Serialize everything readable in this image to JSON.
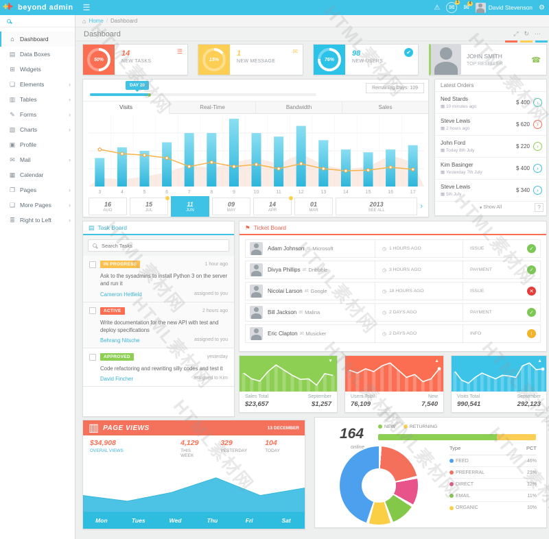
{
  "watermark": "HTML素材网",
  "topbar": {
    "brand": "beyond admin",
    "menu_icon": "☰",
    "alert_icon": "⚠",
    "mail_icon": "✉",
    "notif_icon": "✉",
    "badge1": "1",
    "badge2": "4",
    "user": "David Stevenson",
    "gear_icon": "⚙"
  },
  "breadcrumb": {
    "home_icon": "⌂",
    "home": "Home",
    "sep": "/",
    "current": "Dashboard"
  },
  "page": {
    "title": "Dashboard",
    "expand_icon": "⤢",
    "refresh_icon": "↻",
    "more_icon": "⋯"
  },
  "sidebar": {
    "items": [
      {
        "icon": "⌂",
        "label": "Dashboard",
        "chevron": ""
      },
      {
        "icon": "▤",
        "label": "Data Boxes",
        "chevron": ""
      },
      {
        "icon": "⊞",
        "label": "Widgets",
        "chevron": ""
      },
      {
        "icon": "❏",
        "label": "Elements",
        "chevron": "›"
      },
      {
        "icon": "▥",
        "label": "Tables",
        "chevron": "›"
      },
      {
        "icon": "✎",
        "label": "Forms",
        "chevron": "›"
      },
      {
        "icon": "▧",
        "label": "Charts",
        "chevron": "›"
      },
      {
        "icon": "▣",
        "label": "Profile",
        "chevron": ""
      },
      {
        "icon": "✉",
        "label": "Mail",
        "chevron": "›"
      },
      {
        "icon": "▦",
        "label": "Calendar",
        "chevron": ""
      },
      {
        "icon": "❐",
        "label": "Pages",
        "chevron": "›"
      },
      {
        "icon": "❑",
        "label": "More Pages",
        "chevron": "›"
      },
      {
        "icon": "≣",
        "label": "Right to Left",
        "chevron": "›"
      }
    ]
  },
  "stat_cards": [
    {
      "percent": "50%",
      "value": "14",
      "label": "NEW TASKS",
      "color": "#fb6e52",
      "icon": "☰"
    },
    {
      "percent": "15%",
      "value": "1",
      "label": "NEW MESSAGE",
      "color": "#fcce54",
      "icon": "✉"
    },
    {
      "percent": "76%",
      "value": "98",
      "label": "NEW USERS",
      "color": "#2dc3e8",
      "icon": "✔"
    }
  ],
  "reseller": {
    "name": "JOHN SMITH",
    "role": "TOP RESELLER",
    "phone_icon": "☎"
  },
  "visits_panel": {
    "day_badge": "DAY 20",
    "remaining": "Remaining Days: 109",
    "tabs": [
      {
        "label": "Visits"
      },
      {
        "label": "Real-Time"
      },
      {
        "label": "Bandwidth"
      },
      {
        "label": "Sales"
      }
    ],
    "dates": [
      {
        "day": "16",
        "month": "AUG"
      },
      {
        "day": "15",
        "month": "JUL"
      },
      {
        "day": "11",
        "month": "JUN"
      },
      {
        "day": "09",
        "month": "MAY"
      },
      {
        "day": "14",
        "month": "APR"
      },
      {
        "day": "01",
        "month": "MAR"
      }
    ],
    "year": "2013",
    "see_all": "SEE ALL",
    "next_icon": "›"
  },
  "orders": {
    "title": "Latest Orders",
    "cal_icon": "▦",
    "caret": "▾",
    "show_all": "Show All",
    "help": "?",
    "chev": "›",
    "rows": [
      {
        "name": "Ned Stards",
        "date": "10 minutes ago",
        "amount": "$ 400",
        "color": "#45cab8"
      },
      {
        "name": "Steve Lewis",
        "date": "2 hours ago",
        "amount": "$ 620",
        "color": "#fb6e52"
      },
      {
        "name": "John Ford",
        "date": "Today 8th July",
        "amount": "$ 220",
        "color": "#8ccf52"
      },
      {
        "name": "Kim Basinger",
        "date": "Yesterday 7th July",
        "amount": "$ 400",
        "color": "#3bc0e3"
      },
      {
        "name": "Steve Lewis",
        "date": "5th July",
        "amount": "$ 340",
        "color": "#3bc0e3"
      }
    ]
  },
  "task_board": {
    "title": "Task Board",
    "icon": "▤",
    "search_placeholder": "Search Tasks",
    "tasks": [
      {
        "badge": "IN PROGRESS",
        "badge_color": "#fcc04d",
        "time": "1 hour ago",
        "text": "Ask to the sysadmins to install Python 3 on the server and run it",
        "assignee": "Cameron Hetfield",
        "assigned": "assigned to you"
      },
      {
        "badge": "ACTIVE",
        "badge_color": "#fb6e52",
        "time": "2 hours ago",
        "text": "Write documentation for the new API with test and deploy specifications",
        "assignee": "Behrang Nitsche",
        "assigned": "assigned to you"
      },
      {
        "badge": "APPROVED",
        "badge_color": "#8ccf52",
        "time": "yesterday",
        "text": "Code refactoring and rewriting silly codes and test it",
        "assignee": "David Fincher",
        "assigned": "assigned to Kim"
      }
    ]
  },
  "ticket_board": {
    "title": "Ticket Board",
    "icon": "⚑",
    "clock_icon": "◷",
    "rows": [
      {
        "name": "Adam Johnson",
        "at": "at",
        "company": "Microsoft",
        "time": "1 HOURS AGO",
        "type": "ISSUE",
        "status_icon": "✓",
        "status_color": "#7dc855"
      },
      {
        "name": "Divya Phillips",
        "at": "at",
        "company": "Dribbble",
        "time": "3 HOURS AGO",
        "type": "PAYMENT",
        "status_icon": "✓",
        "status_color": "#7dc855"
      },
      {
        "name": "Nicolai Larson",
        "at": "at",
        "company": "Google",
        "time": "18 HOURS AGO",
        "type": "ISSUE",
        "status_icon": "✕",
        "status_color": "#e53b3b"
      },
      {
        "name": "Bill Jackson",
        "at": "at",
        "company": "Malina",
        "time": "2 DAYS AGO",
        "type": "PAYMENT",
        "status_icon": "✓",
        "status_color": "#7dc855"
      },
      {
        "name": "Eric Clapton",
        "at": "at",
        "company": "Musicker",
        "time": "2 DAYS AGO",
        "type": "INFO",
        "status_icon": "!",
        "status_color": "#f3b32a"
      }
    ]
  },
  "summary_cards": [
    {
      "label": "Sales Total",
      "value": "$23,657",
      "label2": "September",
      "value2": "$1,257",
      "color": "#8ccf52",
      "trend": "▼"
    },
    {
      "label": "Users Total",
      "value": "76,109",
      "label2": "New",
      "value2": "7,540",
      "color": "#fb6e52",
      "trend": "▲"
    },
    {
      "label": "Visits Total",
      "value": "990,541",
      "label2": "September",
      "value2": "292,123",
      "color": "#3bc3e8",
      "trend": "▲"
    }
  ],
  "page_views": {
    "title": "PAGE VIEWS",
    "icon": "▥",
    "date": "13 DECEMBER",
    "stats": [
      {
        "value": "$34,908",
        "label": "OVERAL VIEWS"
      },
      {
        "value": "4,129",
        "label": "THIS WEEK"
      },
      {
        "value": "329",
        "label": "YESTERDAY"
      },
      {
        "value": "104",
        "label": "TODAY"
      }
    ]
  },
  "visitors": {
    "count": "164",
    "online_label": "online",
    "legend": [
      {
        "label": "NEW"
      },
      {
        "label": "RETURNING"
      }
    ],
    "table_head": {
      "type": "Type",
      "pct": "PCT"
    },
    "rows": [
      {
        "label": "FEED",
        "pct": "46%"
      },
      {
        "label": "PREFERRAL",
        "pct": "21%"
      },
      {
        "label": "DIRECT",
        "pct": "12%"
      },
      {
        "label": "EMAIL",
        "pct": "11%"
      },
      {
        "label": "ORGANIC",
        "pct": "10%"
      }
    ]
  },
  "chart_data": [
    {
      "name": "visits",
      "type": "bar",
      "title": "Visits",
      "x": [
        3,
        4,
        5,
        6,
        7,
        8,
        9,
        10,
        11,
        12,
        13,
        14,
        15,
        16,
        17
      ],
      "series": [
        {
          "name": "visits-bars",
          "type": "bar",
          "color": "#4fc9e9",
          "values": [
            40,
            55,
            50,
            62,
            75,
            75,
            95,
            75,
            70,
            85,
            65,
            52,
            48,
            52,
            58
          ]
        },
        {
          "name": "visits-line",
          "type": "line",
          "color": "#f6b44b",
          "values": [
            52,
            46,
            44,
            40,
            28,
            34,
            28,
            31,
            25,
            32,
            25,
            22,
            23,
            27,
            24
          ]
        },
        {
          "name": "visits-area",
          "type": "area",
          "color": "#f8ddd3",
          "values": [
            12,
            10,
            14,
            20,
            30,
            26,
            34,
            40,
            32,
            46,
            30,
            24,
            28,
            44,
            34
          ]
        }
      ]
    },
    {
      "name": "sales_spark",
      "type": "line",
      "values": [
        50,
        30,
        22,
        55,
        78,
        60,
        42,
        28,
        30,
        8,
        48,
        42
      ],
      "dot": false
    },
    {
      "name": "users_spark",
      "type": "line",
      "values": [
        60,
        50,
        65,
        55,
        75,
        85,
        60,
        35,
        45,
        20,
        30,
        65
      ],
      "dot": true
    },
    {
      "name": "visits_spark",
      "type": "line",
      "values": [
        55,
        25,
        15,
        35,
        50,
        40,
        30,
        42,
        40,
        35,
        75,
        85,
        62,
        64
      ],
      "dot": true
    },
    {
      "name": "page_views",
      "type": "area",
      "categories": [
        "Mon",
        "Tues",
        "Wed",
        "Thu",
        "Fri",
        "Sat"
      ],
      "values": [
        35,
        22,
        42,
        75,
        35,
        52
      ],
      "color": "#4cc3e5"
    },
    {
      "name": "sources",
      "type": "pie",
      "labels": [
        "FEED",
        "PREFERRAL",
        "DIRECT",
        "EMAIL",
        "ORGANIC"
      ],
      "values": [
        46,
        21,
        12,
        11,
        10
      ],
      "colors": [
        "#4da0ee",
        "#f4705b",
        "#e8538a",
        "#84c84a",
        "#fbcf45"
      ],
      "draw_order": [
        1,
        2,
        3,
        4,
        0
      ]
    },
    {
      "name": "new_returning",
      "type": "bar",
      "labels": [
        "NEW",
        "RETURNING"
      ],
      "values": [
        75,
        25
      ],
      "colors": [
        "#8ccf52",
        "#fcce54"
      ]
    }
  ]
}
